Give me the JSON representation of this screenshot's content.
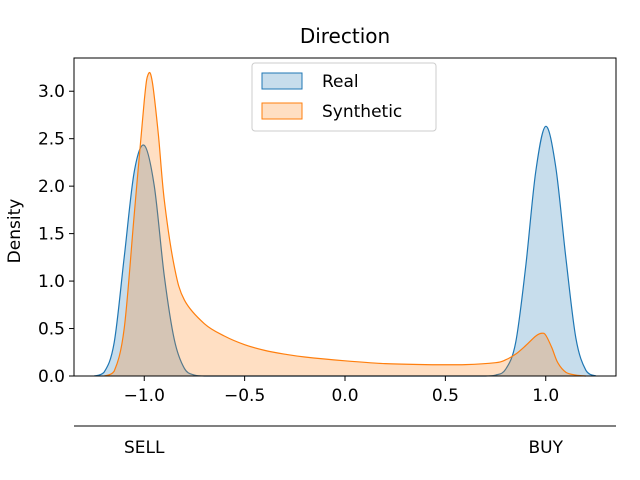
{
  "chart_data": {
    "type": "area",
    "kind": "kde",
    "title": "Direction",
    "xlabel": "",
    "ylabel": "Density",
    "xlim": [
      -1.35,
      1.35
    ],
    "ylim": [
      0,
      3.35
    ],
    "x_ticks": [
      -1.0,
      -0.5,
      0.0,
      0.5,
      1.0
    ],
    "x_tick_labels": [
      "−1.0",
      "−0.5",
      "0.0",
      "0.5",
      "1.0"
    ],
    "y_ticks": [
      0.0,
      0.5,
      1.0,
      1.5,
      2.0,
      2.5,
      3.0
    ],
    "y_tick_labels": [
      "0.0",
      "0.5",
      "1.0",
      "1.5",
      "2.0",
      "2.5",
      "3.0"
    ],
    "category_axis": {
      "labels": [
        "SELL",
        "BUY"
      ],
      "positions": [
        -1.0,
        1.0
      ]
    },
    "legend": {
      "position": "top-center"
    },
    "grid": false,
    "series": [
      {
        "name": "Real",
        "line_color": "#1f77b4",
        "fill_color": "#1f77b4",
        "x": [
          -1.25,
          -1.2,
          -1.15,
          -1.1,
          -1.05,
          -1.0,
          -0.95,
          -0.9,
          -0.85,
          -0.8,
          -0.75,
          -0.7,
          -0.6,
          0.0,
          0.6,
          0.7,
          0.75,
          0.8,
          0.85,
          0.9,
          0.95,
          1.0,
          1.05,
          1.1,
          1.15,
          1.2,
          1.25
        ],
        "y": [
          0.0,
          0.04,
          0.35,
          1.25,
          2.15,
          2.43,
          2.0,
          1.05,
          0.38,
          0.08,
          0.01,
          0.0,
          0.0,
          0.0,
          0.0,
          0.0,
          0.01,
          0.07,
          0.35,
          1.15,
          2.15,
          2.63,
          2.2,
          1.25,
          0.4,
          0.06,
          0.0
        ]
      },
      {
        "name": "Synthetic",
        "line_color": "#ff7f0e",
        "fill_color": "#ff7f0e",
        "x": [
          -1.2,
          -1.15,
          -1.1,
          -1.05,
          -1.0,
          -0.98,
          -0.96,
          -0.93,
          -0.9,
          -0.85,
          -0.8,
          -0.7,
          -0.6,
          -0.5,
          -0.4,
          -0.3,
          -0.2,
          0.0,
          0.2,
          0.4,
          0.6,
          0.75,
          0.8,
          0.85,
          0.9,
          0.95,
          0.98,
          1.0,
          1.03,
          1.06,
          1.1,
          1.15,
          1.2
        ],
        "y": [
          0.0,
          0.05,
          0.5,
          1.7,
          2.9,
          3.18,
          3.1,
          2.55,
          1.85,
          1.15,
          0.8,
          0.55,
          0.42,
          0.33,
          0.27,
          0.23,
          0.2,
          0.16,
          0.13,
          0.12,
          0.12,
          0.14,
          0.17,
          0.23,
          0.32,
          0.42,
          0.45,
          0.43,
          0.3,
          0.14,
          0.04,
          0.01,
          0.0
        ]
      }
    ]
  }
}
